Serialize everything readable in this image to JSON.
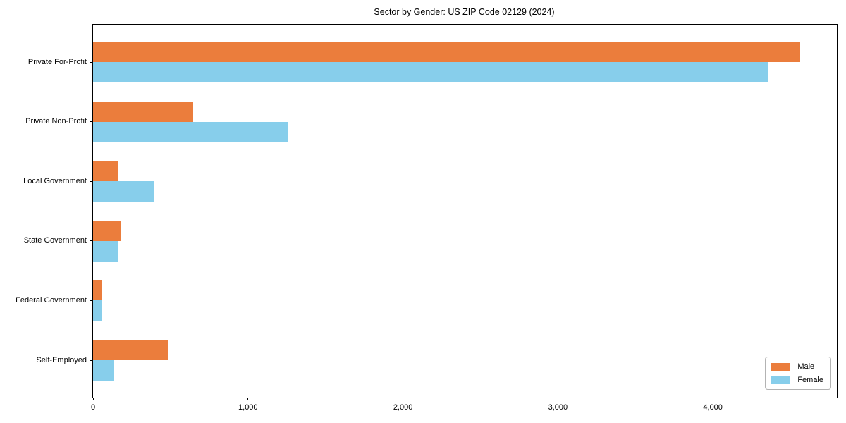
{
  "chart_data": {
    "type": "bar",
    "orientation": "horizontal",
    "title": "Sector by Gender: US ZIP Code 02129 (2024)",
    "categories": [
      "Private For-Profit",
      "Private Non-Profit",
      "Local Government",
      "State Government",
      "Federal Government",
      "Self-Employed"
    ],
    "series": [
      {
        "name": "Male",
        "color": "#eb7d3c",
        "values": [
          4565,
          645,
          160,
          180,
          60,
          480
        ]
      },
      {
        "name": "Female",
        "color": "#87ceeb",
        "values": [
          4355,
          1260,
          390,
          165,
          55,
          135
        ]
      }
    ],
    "xlim": [
      0,
      4800
    ],
    "x_ticks": [
      0,
      1000,
      2000,
      3000,
      4000
    ],
    "x_tick_labels": [
      "0",
      "1,000",
      "2,000",
      "3,000",
      "4,000"
    ],
    "ylabel": "",
    "xlabel": "",
    "grid": false,
    "legend": {
      "position": "lower right",
      "entries": [
        "Male",
        "Female"
      ]
    },
    "style": {
      "spine_color": "#000000",
      "legend_border": "#b3b3b3",
      "background": "#ffffff"
    }
  }
}
